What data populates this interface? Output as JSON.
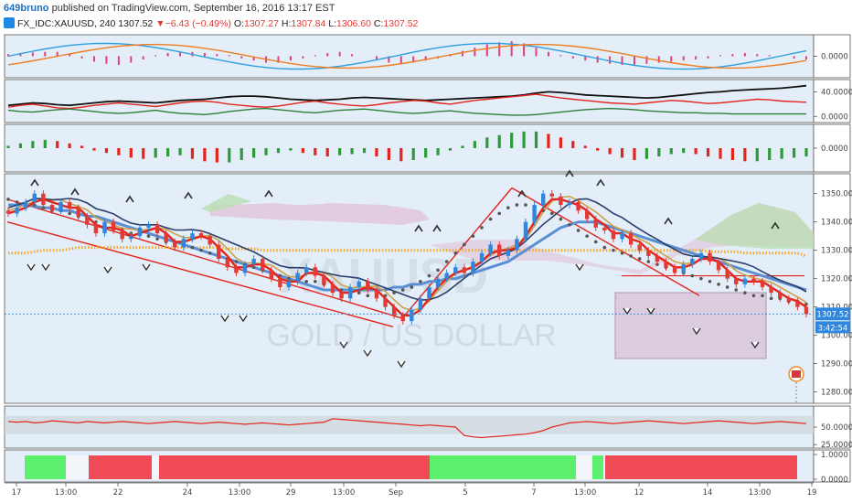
{
  "header": {
    "author": "649bruno",
    "published_text": "published on TradingView.com, September 16, 2016 13:17 EST",
    "symbol": "FX_IDC:XAUUSD, 240",
    "last": "1307.52",
    "change": "▼−6.43 (−0.49%)",
    "open_label": "O:",
    "open": "1307.27",
    "high_label": "H:",
    "high": "1307.84",
    "low_label": "L:",
    "low": "1306.60",
    "close_label": "C:",
    "close": "1307.52"
  },
  "watermark": {
    "symbol": "XAUUSD",
    "name": "GOLD / US DOLLAR"
  },
  "colors": {
    "panel_bg": "#e3eef8",
    "up": "#2e86de",
    "down": "#e53935",
    "cloud_bull": "#b9dfb0",
    "cloud_bear": "#e0bfd4",
    "ma_orange": "#f5a623",
    "ma_blue": "#5b8fd3",
    "ma_navy": "#2c3e6b",
    "ma_tan": "#c9a24a",
    "ma_red": "#e3241b",
    "dots": "#555555",
    "green_hist": "#2e9a3a",
    "red_hist": "#e3241b",
    "pink_hist": "#e0407a",
    "bar_green": "#5cf06c",
    "bar_red": "#f04a57"
  },
  "x_axis": {
    "ticks": [
      "17",
      "13:00",
      "22",
      "24",
      "13:00",
      "29",
      "13:00",
      "Sep",
      "5",
      "7",
      "13:00",
      "12",
      "14",
      "13:00",
      "19"
    ]
  },
  "chart_data": [
    {
      "type": "line",
      "panel": "oscillator-1",
      "y_ticks": [
        "0.0000"
      ],
      "ylim": [
        -1,
        1
      ],
      "hist_pattern": "pink",
      "hist_values": [
        0.1,
        0.15,
        0.18,
        0.2,
        0.2,
        0.1,
        -0.1,
        -0.25,
        -0.35,
        -0.4,
        -0.3,
        -0.15,
        0.05,
        0.15,
        0.2,
        0.2,
        0.15,
        0.1,
        0.05,
        -0.1,
        -0.2,
        -0.3,
        -0.3,
        -0.2,
        -0.1,
        0.05,
        0.15,
        0.2,
        0.1,
        0,
        -0.15,
        -0.3,
        -0.35,
        -0.3,
        -0.2,
        -0.1,
        0.1,
        0.25,
        0.4,
        0.55,
        0.65,
        0.7,
        0.6,
        0.4,
        0.2,
        0.05,
        -0.1,
        -0.2,
        -0.3,
        -0.35,
        -0.4,
        -0.4,
        -0.35,
        -0.3,
        -0.25,
        -0.2,
        -0.15,
        -0.1,
        0.05,
        0.1,
        0.15,
        0.1,
        0.05,
        0,
        -0.1,
        -0.15
      ]
    },
    {
      "type": "line",
      "panel": "oscillator-2",
      "y_ticks": [
        "40.0000",
        "0.0000"
      ],
      "ylim": [
        -10,
        60
      ],
      "series": [
        {
          "name": "",
          "color": "#111111",
          "values": [
            18,
            20,
            22,
            21,
            19,
            18,
            20,
            22,
            24,
            25,
            24,
            23,
            22,
            24,
            26,
            27,
            28,
            30,
            32,
            33,
            33,
            32,
            30,
            28,
            27,
            26,
            27,
            28,
            30,
            31,
            30,
            29,
            28,
            27,
            26,
            27,
            28,
            29,
            30,
            31,
            32,
            33,
            35,
            38,
            40,
            39,
            37,
            35,
            34,
            33,
            32,
            31,
            30,
            31,
            33,
            35,
            37,
            39,
            40,
            42,
            43,
            44,
            45,
            46,
            48,
            50
          ]
        },
        {
          "name": "",
          "color": "#e3241b",
          "values": [
            15,
            18,
            20,
            17,
            14,
            13,
            15,
            18,
            20,
            22,
            20,
            18,
            16,
            19,
            22,
            24,
            25,
            23,
            20,
            18,
            16,
            15,
            17,
            20,
            23,
            25,
            22,
            20,
            18,
            17,
            19,
            22,
            24,
            26,
            25,
            22,
            20,
            23,
            26,
            28,
            30,
            32,
            34,
            36,
            33,
            30,
            28,
            26,
            24,
            22,
            21,
            20,
            22,
            24,
            26,
            25,
            23,
            21,
            22,
            24,
            26,
            28,
            27,
            25,
            24,
            23
          ]
        },
        {
          "name": "",
          "color": "#2f7d3a",
          "values": [
            10,
            8,
            7,
            9,
            11,
            12,
            10,
            8,
            6,
            5,
            6,
            8,
            10,
            7,
            5,
            4,
            3,
            5,
            8,
            10,
            12,
            13,
            11,
            9,
            7,
            6,
            8,
            10,
            11,
            12,
            10,
            8,
            6,
            5,
            6,
            8,
            9,
            7,
            5,
            4,
            3,
            2,
            2,
            3,
            5,
            7,
            9,
            11,
            12,
            13,
            12,
            11,
            9,
            8,
            7,
            6,
            6,
            5,
            5,
            4,
            4,
            4,
            4,
            4,
            4,
            4
          ]
        }
      ]
    },
    {
      "type": "bar",
      "panel": "oscillator-3",
      "y_ticks": [
        "0.0000"
      ],
      "ylim": [
        -1,
        1
      ],
      "values": [
        0.1,
        0.2,
        0.3,
        0.35,
        0.3,
        0.2,
        0.1,
        -0.1,
        -0.2,
        -0.3,
        -0.4,
        -0.45,
        -0.4,
        -0.35,
        -0.3,
        -0.45,
        -0.55,
        -0.6,
        -0.6,
        -0.5,
        -0.4,
        -0.3,
        -0.2,
        -0.1,
        -0.2,
        -0.3,
        -0.35,
        -0.3,
        -0.25,
        -0.2,
        -0.35,
        -0.5,
        -0.55,
        -0.5,
        -0.4,
        -0.3,
        -0.1,
        0.1,
        0.3,
        0.45,
        0.55,
        0.65,
        0.7,
        0.7,
        0.6,
        0.45,
        0.3,
        0.1,
        -0.1,
        -0.25,
        -0.4,
        -0.5,
        -0.45,
        -0.35,
        -0.25,
        -0.2,
        -0.25,
        -0.35,
        -0.45,
        -0.5,
        -0.55,
        -0.55,
        -0.5,
        -0.45,
        -0.4,
        -0.35
      ]
    },
    {
      "type": "line",
      "panel": "price",
      "title": "FX_IDC:XAUUSD, 240",
      "y_ticks": [
        "1350.00",
        "1340.00",
        "1330.00",
        "1320.00",
        "1310.00",
        "1300.00",
        "1290.00",
        "1280.00"
      ],
      "ylim": [
        1276,
        1357
      ],
      "last_price": "1307.52",
      "countdown": "3:42:54",
      "candles_close": [
        1343,
        1345,
        1347,
        1350,
        1346,
        1344,
        1347,
        1345,
        1342,
        1339,
        1336,
        1340,
        1337,
        1334,
        1335,
        1338,
        1339,
        1336,
        1333,
        1331,
        1334,
        1336,
        1335,
        1332,
        1327,
        1324,
        1322,
        1325,
        1327,
        1323,
        1320,
        1317,
        1319,
        1322,
        1324,
        1321,
        1318,
        1315,
        1313,
        1317,
        1319,
        1316,
        1313,
        1310,
        1307,
        1305,
        1309,
        1313,
        1317,
        1320,
        1322,
        1324,
        1322,
        1326,
        1329,
        1332,
        1328,
        1330,
        1334,
        1340,
        1346,
        1350,
        1349,
        1346,
        1347,
        1344,
        1341,
        1338,
        1337,
        1334,
        1336,
        1332,
        1330,
        1328,
        1326,
        1324,
        1322,
        1325,
        1327,
        1329,
        1326,
        1323,
        1320,
        1318,
        1320,
        1319,
        1317,
        1315,
        1313,
        1312,
        1310,
        1307.5
      ],
      "series": [
        {
          "name": "",
          "color": "#e3241b",
          "values": [
            1347,
            1346,
            1345,
            1345,
            1344,
            1343,
            1343,
            1342,
            1341,
            1340,
            1339,
            1338,
            1337,
            1336,
            1335,
            1335,
            1334,
            1333,
            1332,
            1331,
            1331,
            1330,
            1329,
            1328,
            1327,
            1326,
            1325,
            1324,
            1323,
            1322,
            1321,
            1320,
            1319,
            1319,
            1318,
            1318,
            1317,
            1316,
            1315,
            1314,
            1314,
            1313,
            1313,
            1313,
            1314,
            1315,
            1316,
            1318,
            1320,
            1322,
            1325,
            1328,
            1331,
            1334,
            1337,
            1340,
            1342,
            1344,
            1345,
            1345,
            1344,
            1343,
            1342,
            1340,
            1338,
            1336,
            1334,
            1332,
            1330,
            1329,
            1328,
            1327,
            1326,
            1325,
            1324,
            1323,
            1322,
            1321,
            1320,
            1319,
            1318,
            1317,
            1316,
            1315,
            1314,
            1313,
            1313,
            1312,
            1312,
            1311,
            1311,
            1310
          ]
        },
        {
          "name": "",
          "color": "#f5a623",
          "values": [
            1329,
            1329,
            1329,
            1329.5,
            1330,
            1330,
            1330,
            1330.5,
            1331,
            1331,
            1331,
            1331,
            1331,
            1331,
            1331,
            1331,
            1331,
            1331,
            1331,
            1331,
            1331,
            1331,
            1331,
            1331,
            1331,
            1330.5,
            1330.5,
            1330.5,
            1330.5,
            1330,
            1330,
            1330,
            1330,
            1330,
            1330,
            1330,
            1330,
            1330,
            1330,
            1330,
            1330,
            1330,
            1330,
            1330,
            1330,
            1330,
            1330,
            1330,
            1330,
            1330,
            1330,
            1330,
            1330,
            1330,
            1330,
            1330,
            1330,
            1330,
            1330,
            1330,
            1330,
            1330,
            1330,
            1330,
            1330,
            1330,
            1330,
            1330,
            1330,
            1330,
            1330,
            1330,
            1330,
            1330,
            1330,
            1330,
            1330,
            1330,
            1330,
            1330,
            1329.5,
            1329.5,
            1329.5,
            1329.5,
            1329,
            1329,
            1329,
            1329,
            1329,
            1329,
            1329,
            1328
          ]
        },
        {
          "name": "",
          "color": "#5b8fd3",
          "values": [
            1346,
            1346,
            1346,
            1345.5,
            1345,
            1345,
            1344,
            1344,
            1343,
            1342,
            1342,
            1341,
            1340,
            1339,
            1338,
            1337,
            1336,
            1335,
            1334,
            1333,
            1332,
            1331,
            1330,
            1329,
            1328,
            1327,
            1326,
            1325,
            1324,
            1323,
            1322,
            1321,
            1320,
            1319,
            1318,
            1317,
            1316,
            1316,
            1316,
            1316,
            1316,
            1316,
            1316,
            1316,
            1317,
            1317,
            1318,
            1318,
            1319,
            1319,
            1320,
            1320,
            1321,
            1322,
            1323,
            1324,
            1325,
            1326,
            1328,
            1330,
            1332,
            1334,
            1336,
            1338,
            1339,
            1340,
            1340,
            1340,
            1339,
            1338,
            1337,
            1336,
            1335,
            1334,
            1333,
            1332,
            1331,
            1330,
            1329,
            1328,
            1327,
            1326,
            1325,
            1324,
            1323,
            1322,
            1321,
            1320,
            1319,
            1318,
            1317,
            1316
          ]
        }
      ]
    },
    {
      "type": "line",
      "panel": "rsi",
      "y_ticks": [
        "50.0000",
        "25.0000"
      ],
      "ylim": [
        20,
        80
      ],
      "values": [
        58,
        57,
        58,
        56,
        57,
        59,
        58,
        57,
        56,
        58,
        57,
        56,
        57,
        58,
        57,
        56,
        55,
        56,
        57,
        58,
        57,
        56,
        55,
        56,
        57,
        56,
        55,
        54,
        55,
        56,
        55,
        54,
        53,
        54,
        55,
        56,
        57,
        62,
        61,
        60,
        59,
        58,
        57,
        56,
        55,
        54,
        53,
        52,
        53,
        52,
        51,
        50,
        38,
        36,
        35,
        36,
        37,
        38,
        39,
        40,
        42,
        45,
        50,
        53,
        56,
        57,
        58,
        57,
        56,
        55,
        56,
        57,
        58,
        59,
        58,
        57,
        56,
        55,
        56,
        57,
        58,
        59,
        58,
        57,
        56,
        55,
        56,
        57,
        58,
        57,
        56,
        55
      ]
    },
    {
      "type": "bar",
      "panel": "trend-strip",
      "y_ticks": [
        "1.0000",
        "0.0000"
      ],
      "segments": [
        "green",
        "white",
        "red",
        "white",
        "red",
        "green",
        "white",
        "green",
        "red"
      ]
    }
  ]
}
